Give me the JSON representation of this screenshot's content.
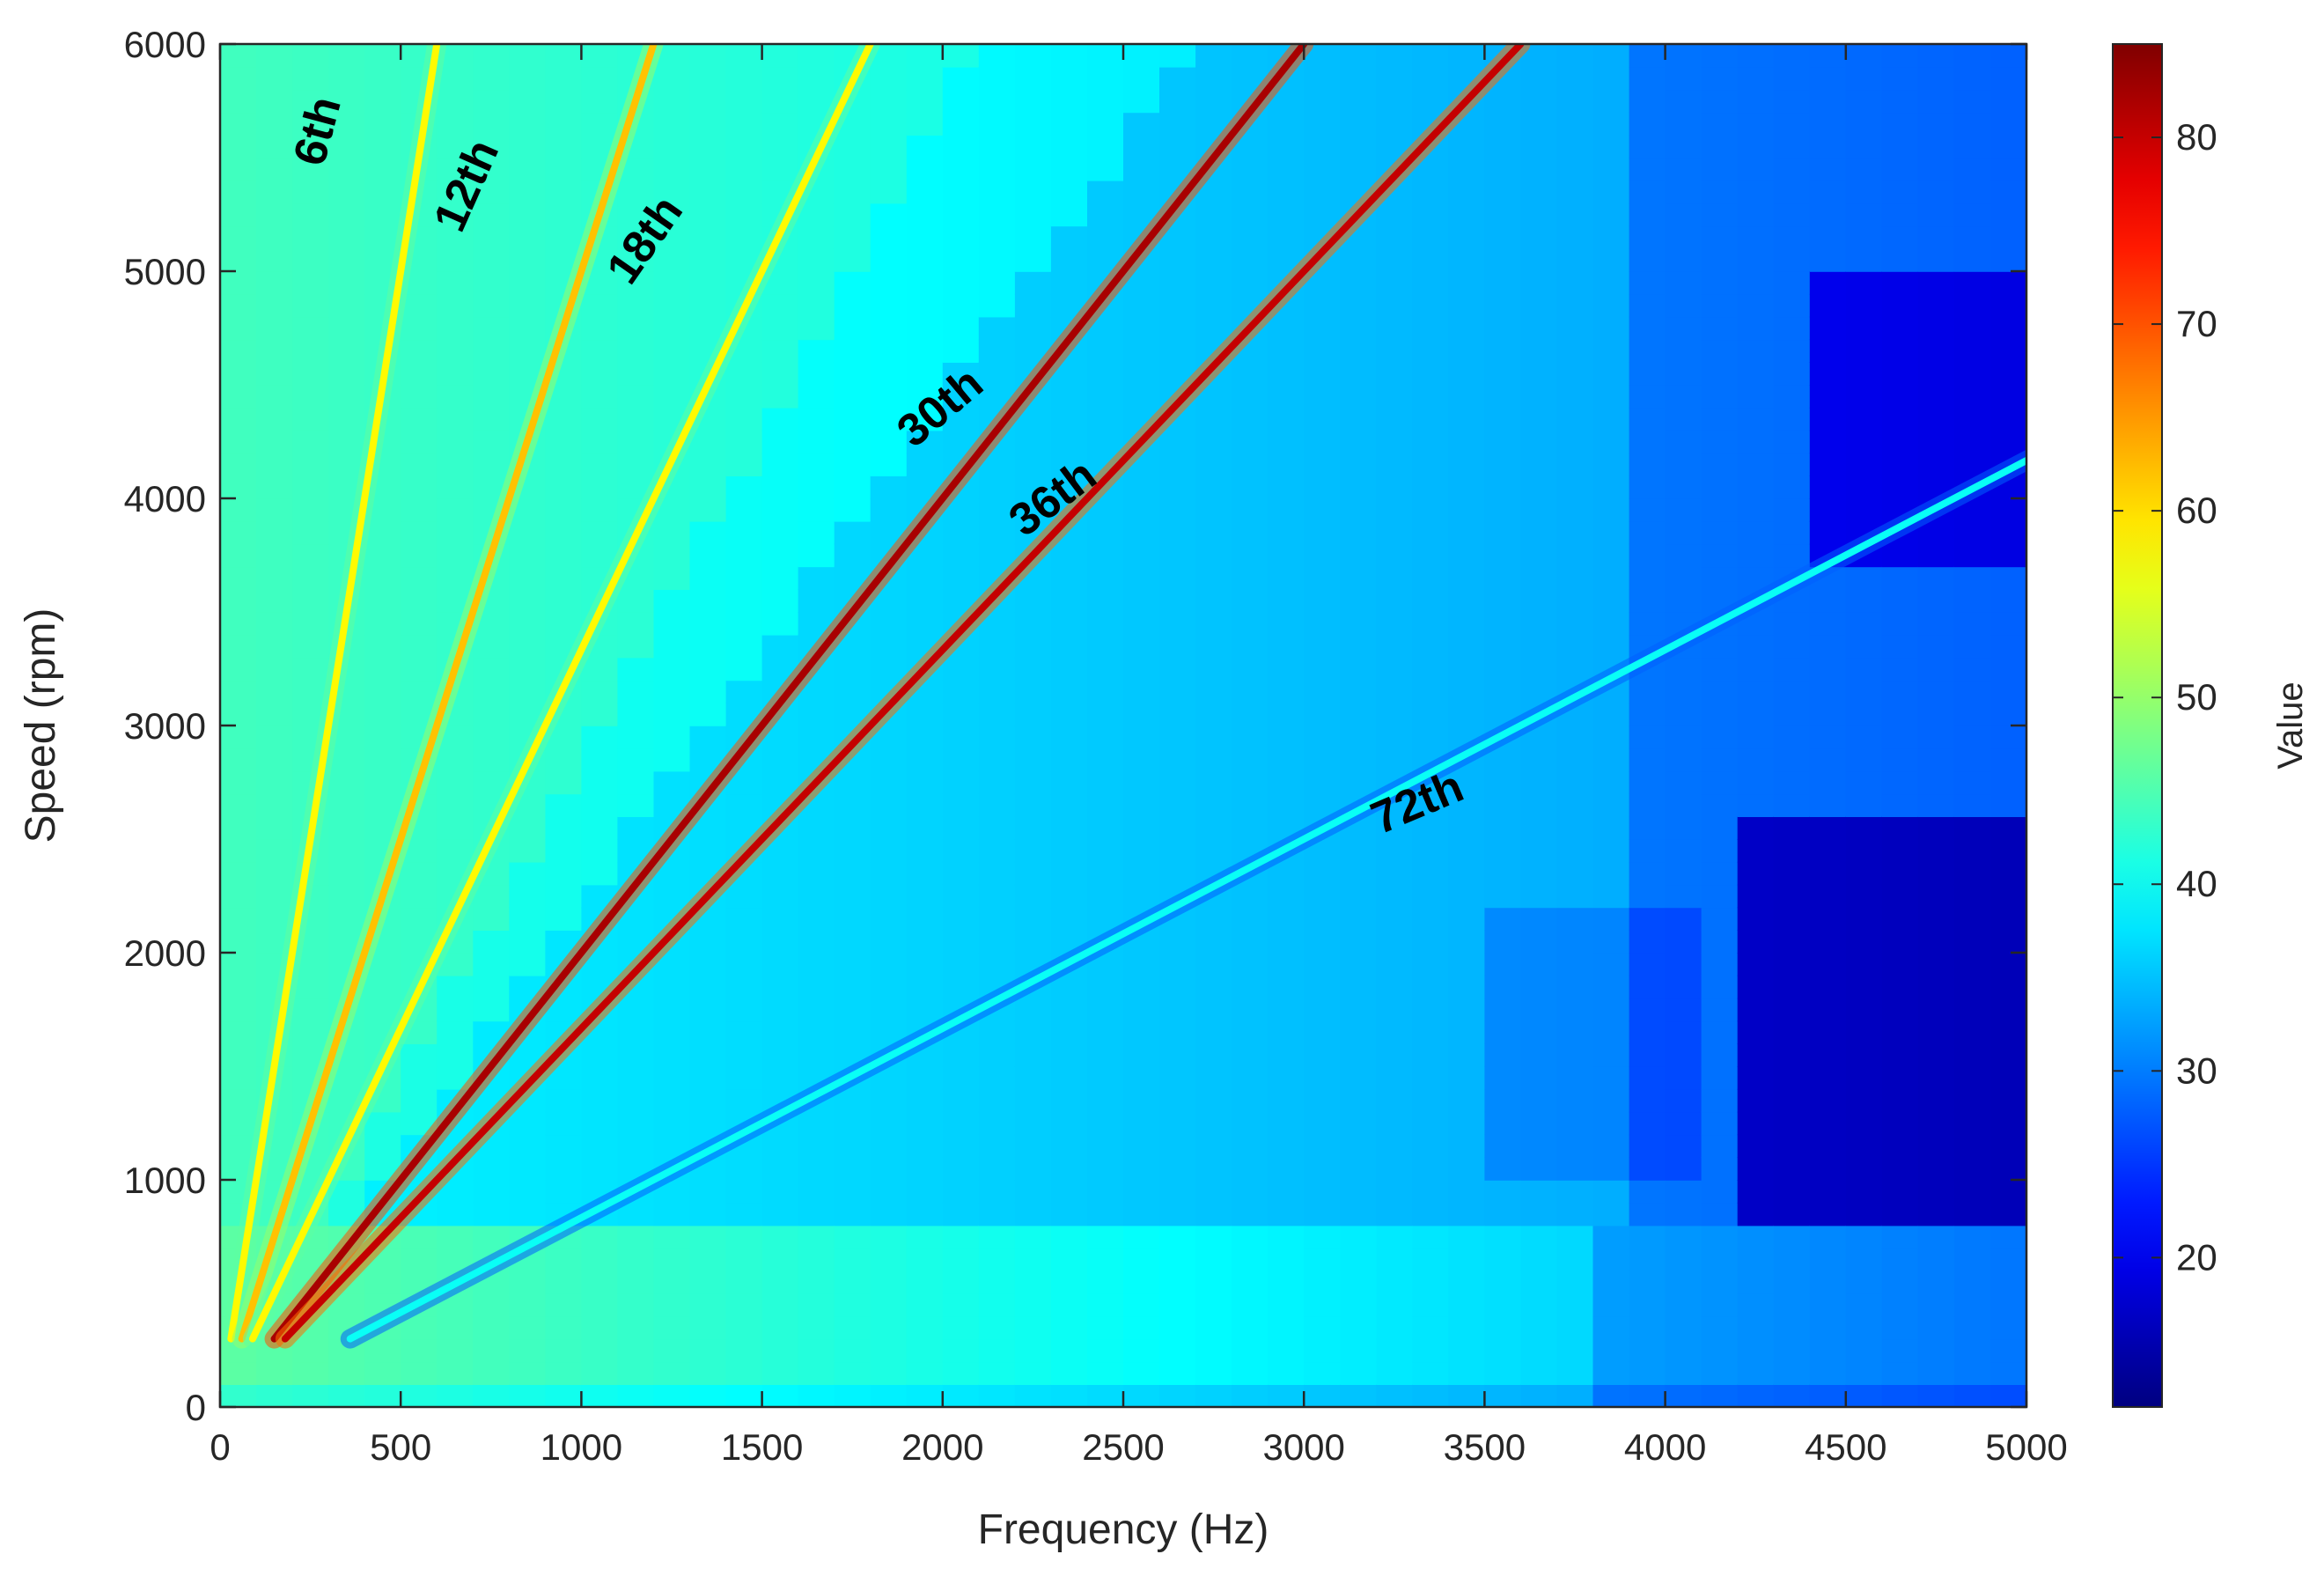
{
  "chart_data": {
    "type": "heatmap",
    "title": "",
    "xlabel": "Frequency (Hz)",
    "ylabel": "Speed (rpm)",
    "xlim": [
      0,
      5000
    ],
    "ylim": [
      0,
      6000
    ],
    "xticks": [
      0,
      500,
      1000,
      1500,
      2000,
      2500,
      3000,
      3500,
      4000,
      4500,
      5000
    ],
    "yticks": [
      0,
      1000,
      2000,
      3000,
      4000,
      5000,
      6000
    ],
    "colorbar": {
      "label": "Value",
      "range": [
        12,
        85
      ],
      "ticks": [
        20,
        30,
        40,
        50,
        60,
        70,
        80
      ],
      "colormap": "jet"
    },
    "grid": false,
    "orders": [
      {
        "name": "6th",
        "order": 6,
        "peak_value": 58
      },
      {
        "name": "12th",
        "order": 12,
        "peak_value": 62
      },
      {
        "name": "18th",
        "order": 18,
        "peak_value": 58
      },
      {
        "name": "30th",
        "order": 30,
        "peak_value": 82
      },
      {
        "name": "36th",
        "order": 36,
        "peak_value": 80
      },
      {
        "name": "72th",
        "order": 72,
        "peak_value": 40
      }
    ],
    "annotations": [
      {
        "text": "6th",
        "x": 310,
        "y": 5600,
        "angle": -75
      },
      {
        "text": "12th",
        "x": 720,
        "y": 5350,
        "angle": -66
      },
      {
        "text": "18th",
        "x": 1210,
        "y": 5100,
        "angle": -55
      },
      {
        "text": "30th",
        "x": 2020,
        "y": 4350,
        "angle": -40
      },
      {
        "text": "36th",
        "x": 2330,
        "y": 3950,
        "angle": -37
      },
      {
        "text": "72th",
        "x": 3330,
        "y": 2600,
        "angle": -23
      }
    ]
  }
}
